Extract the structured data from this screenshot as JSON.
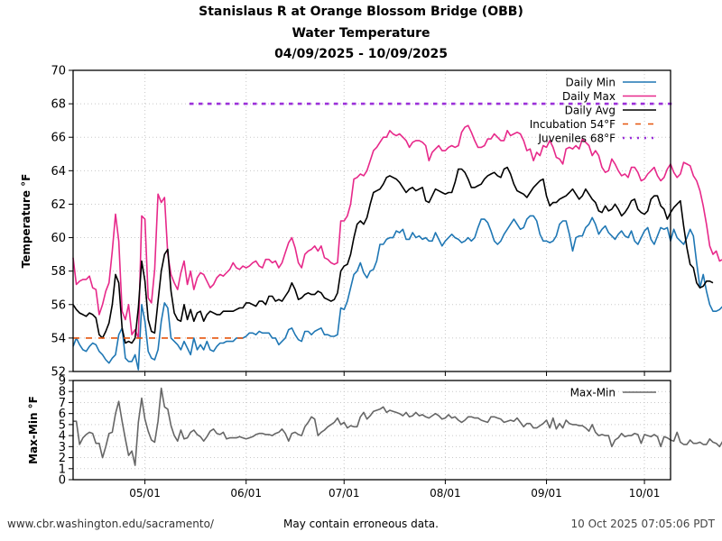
{
  "header": {
    "title_line1": "Stanislaus R at Orange Blossom Bridge (OBB)",
    "title_line2": "Water Temperature",
    "title_line3": "04/09/2025 - 10/09/2025"
  },
  "footer": {
    "url": "www.cbr.washington.edu/sacramento/",
    "disclaimer": "May contain erroneous data.",
    "timestamp": "10 Oct 2025 07:05:06 PDT"
  },
  "colors": {
    "daily_min": "#1f77b4",
    "daily_max": "#e7298a",
    "daily_avg": "#000000",
    "incubation": "#e6550d",
    "juveniles": "#9b30d9",
    "max_min": "#666666"
  },
  "chart_data": [
    {
      "type": "line",
      "title": "Water Temperature",
      "xlabel": "",
      "ylabel": "Temperature °F",
      "ylim": [
        52,
        70
      ],
      "yticks": [
        "52",
        "54",
        "56",
        "58",
        "60",
        "62",
        "64",
        "66",
        "68",
        "70"
      ],
      "xlim": [
        "04/09/2025",
        "10/09/2025"
      ],
      "xticks": [
        "05/01",
        "06/01",
        "07/01",
        "08/01",
        "09/01",
        "10/01"
      ],
      "xtick_day_index": [
        22,
        53,
        83,
        114,
        145,
        175
      ],
      "grid": true,
      "legend_position": "top-right",
      "x_start": "04/09/2025",
      "x_step": "1 day",
      "series": [
        {
          "name": "Daily Min",
          "style": "solid",
          "values": [
            53.5,
            54.0,
            53.6,
            53.3,
            53.2,
            53.5,
            53.7,
            53.6,
            53.2,
            53.0,
            52.7,
            52.5,
            52.8,
            53.0,
            54.2,
            54.6,
            52.8,
            52.6,
            52.6,
            53.0,
            52.1,
            56.0,
            55.0,
            53.2,
            52.8,
            52.7,
            53.3,
            55.0,
            56.1,
            55.8,
            54.0,
            53.8,
            53.6,
            53.3,
            53.8,
            53.4,
            53.0,
            54.0,
            53.3,
            53.6,
            53.3,
            53.8,
            53.3,
            53.2,
            53.5,
            53.7,
            53.7,
            53.8,
            53.8,
            53.8,
            54.0,
            54.0,
            54.0,
            54.1,
            54.3,
            54.3,
            54.2,
            54.4,
            54.3,
            54.3,
            54.3,
            54.0,
            54.0,
            53.6,
            53.8,
            54.0,
            54.5,
            54.6,
            54.2,
            53.9,
            53.8,
            54.4,
            54.4,
            54.2,
            54.4,
            54.5,
            54.6,
            54.2,
            54.2,
            54.1,
            54.1,
            54.2,
            55.8,
            55.7,
            56.2,
            57.0,
            57.8,
            58.0,
            58.5,
            57.9,
            57.6,
            58.0,
            58.1,
            58.6,
            59.6,
            59.6,
            59.9,
            60.0,
            60.0,
            60.4,
            60.3,
            60.5,
            59.9,
            59.9,
            60.3,
            60.0,
            60.1,
            59.9,
            60.0,
            59.8,
            59.8,
            60.3,
            59.9,
            59.5,
            59.8,
            60.0,
            60.2,
            60.0,
            59.9,
            59.7,
            59.8,
            60.0,
            59.8,
            60.0,
            60.6,
            61.1,
            61.1,
            60.9,
            60.4,
            59.8,
            59.6,
            59.8,
            60.2,
            60.5,
            60.8,
            61.1,
            60.8,
            60.5,
            60.6,
            61.1,
            61.3,
            61.3,
            61.0,
            60.2,
            59.8,
            59.8,
            59.7,
            59.8,
            60.1,
            60.8,
            61.0,
            61.0,
            60.2,
            59.2,
            60.0,
            60.1,
            60.1,
            60.6,
            60.8,
            61.2,
            60.8,
            60.2,
            60.5,
            60.7,
            60.3,
            60.1,
            59.9,
            60.2,
            60.4,
            60.1,
            60.0,
            60.4,
            59.8,
            59.6,
            60.0,
            60.4,
            60.6,
            59.9,
            59.6,
            60.1,
            60.6,
            60.5,
            60.6,
            59.8,
            60.5,
            60.0,
            59.8,
            59.6,
            60.0,
            60.5,
            60.1,
            58.5,
            57.0,
            57.8,
            56.8,
            56.0,
            55.6,
            55.6,
            55.7,
            55.9,
            56.0
          ]
        },
        {
          "name": "Daily Max",
          "style": "solid",
          "values": [
            58.8,
            57.2,
            57.4,
            57.5,
            57.5,
            57.7,
            57.0,
            56.9,
            55.4,
            56.0,
            56.8,
            57.3,
            59.2,
            61.4,
            59.8,
            55.6,
            55.1,
            56.0,
            54.2,
            54.5,
            54.0,
            61.3,
            61.1,
            56.4,
            56.1,
            58.1,
            62.6,
            62.1,
            62.4,
            59.0,
            57.8,
            57.3,
            56.9,
            57.9,
            58.6,
            57.2,
            58.0,
            56.9,
            57.6,
            57.9,
            57.8,
            57.4,
            57.0,
            57.2,
            57.6,
            57.8,
            57.7,
            57.9,
            58.1,
            58.5,
            58.2,
            58.1,
            58.3,
            58.2,
            58.3,
            58.5,
            58.6,
            58.3,
            58.2,
            58.7,
            58.7,
            58.5,
            58.6,
            58.2,
            58.5,
            59.1,
            59.7,
            60.0,
            59.4,
            58.5,
            58.2,
            59.0,
            59.2,
            59.3,
            59.5,
            59.2,
            59.5,
            58.8,
            58.7,
            58.5,
            58.4,
            58.5,
            61.0,
            61.0,
            61.3,
            62.0,
            63.5,
            63.6,
            63.8,
            63.7,
            64.0,
            64.6,
            65.2,
            65.4,
            65.7,
            66.0,
            66.0,
            66.4,
            66.2,
            66.1,
            66.2,
            66.0,
            65.8,
            65.4,
            65.7,
            65.8,
            65.8,
            65.7,
            65.5,
            64.6,
            65.1,
            65.3,
            65.5,
            65.2,
            65.2,
            65.4,
            65.5,
            65.4,
            65.5,
            66.3,
            66.6,
            66.7,
            66.3,
            65.8,
            65.4,
            65.4,
            65.5,
            65.9,
            65.9,
            66.2,
            66.0,
            65.8,
            65.8,
            66.4,
            66.1,
            66.2,
            66.3,
            66.2,
            65.8,
            65.2,
            65.3,
            64.6,
            65.1,
            64.9,
            65.5,
            65.4,
            65.8,
            65.4,
            64.8,
            64.7,
            64.4,
            65.3,
            65.4,
            65.3,
            65.5,
            65.3,
            65.9,
            65.7,
            65.5,
            64.9,
            65.2,
            64.9,
            64.2,
            63.9,
            64.0,
            64.7,
            64.4,
            64.0,
            63.7,
            63.8,
            63.6,
            64.2,
            64.2,
            63.9,
            63.4,
            63.5,
            63.8,
            64.0,
            64.2,
            63.7,
            63.4,
            63.6,
            64.1,
            64.4,
            63.9,
            63.6,
            63.8,
            64.5,
            64.4,
            64.3,
            63.7,
            63.4,
            62.8,
            61.9,
            60.8,
            59.5,
            59.0,
            59.2,
            58.6,
            58.7,
            58.8,
            59.4,
            59.2
          ]
        },
        {
          "name": "Daily Avg",
          "style": "solid",
          "values": [
            56.0,
            55.7,
            55.5,
            55.4,
            55.3,
            55.5,
            55.4,
            55.2,
            54.2,
            54.0,
            54.4,
            54.9,
            56.0,
            57.8,
            57.3,
            54.6,
            53.7,
            53.8,
            53.7,
            54.0,
            55.8,
            58.6,
            57.4,
            55.1,
            54.4,
            54.3,
            56.2,
            58.0,
            59.0,
            59.3,
            56.8,
            55.5,
            55.1,
            55.0,
            56.0,
            55.1,
            55.7,
            55.0,
            55.5,
            55.6,
            55.0,
            55.4,
            55.6,
            55.5,
            55.4,
            55.4,
            55.6,
            55.6,
            55.6,
            55.6,
            55.7,
            55.8,
            55.8,
            56.1,
            56.1,
            56.0,
            55.9,
            56.2,
            56.2,
            56.0,
            56.5,
            56.5,
            56.2,
            56.3,
            56.2,
            56.5,
            56.8,
            57.3,
            56.9,
            56.3,
            56.4,
            56.6,
            56.7,
            56.6,
            56.6,
            56.8,
            56.7,
            56.4,
            56.3,
            56.2,
            56.3,
            56.7,
            58.0,
            58.3,
            58.4,
            59.0,
            60.0,
            60.8,
            61.0,
            60.8,
            61.2,
            62.0,
            62.7,
            62.8,
            62.9,
            63.2,
            63.6,
            63.7,
            63.6,
            63.5,
            63.3,
            63.0,
            62.7,
            62.9,
            63.0,
            62.8,
            62.9,
            63.0,
            62.2,
            62.1,
            62.5,
            62.9,
            62.8,
            62.7,
            62.6,
            62.7,
            62.7,
            63.3,
            64.1,
            64.1,
            63.9,
            63.5,
            63.0,
            63.0,
            63.1,
            63.2,
            63.5,
            63.7,
            63.8,
            63.9,
            63.7,
            63.6,
            64.1,
            64.2,
            63.8,
            63.2,
            62.8,
            62.7,
            62.6,
            62.4,
            62.7,
            63.0,
            63.2,
            63.4,
            63.5,
            62.5,
            61.9,
            62.1,
            62.1,
            62.3,
            62.4,
            62.5,
            62.7,
            62.9,
            62.6,
            62.3,
            62.5,
            62.9,
            62.6,
            62.3,
            62.1,
            61.6,
            61.5,
            61.9,
            61.6,
            61.7,
            62.0,
            61.7,
            61.3,
            61.5,
            61.8,
            62.2,
            62.3,
            61.7,
            61.5,
            61.4,
            61.6,
            62.3,
            62.5,
            62.5,
            61.9,
            61.7,
            61.1,
            61.5,
            61.8,
            62.0,
            62.2,
            60.7,
            59.4,
            58.4,
            58.2,
            57.3,
            57.0,
            57.1,
            57.4,
            57.4,
            57.3
          ]
        },
        {
          "name": "Incubation 54°F",
          "style": "dashed",
          "constant": 54,
          "x_range": [
            "04/09/2025",
            "05/31/2025"
          ]
        },
        {
          "name": "Juveniles 68°F",
          "style": "dotted",
          "constant": 68,
          "x_range": [
            "05/15/2025",
            "10/09/2025"
          ]
        }
      ]
    },
    {
      "type": "line",
      "title": "",
      "xlabel": "",
      "ylabel": "Max-Min °F",
      "ylim": [
        0,
        9
      ],
      "yticks": [
        "0",
        "1",
        "2",
        "3",
        "4",
        "5",
        "6",
        "7",
        "8",
        "9"
      ],
      "xticks": [
        "05/01",
        "06/01",
        "07/01",
        "08/01",
        "09/01",
        "10/01"
      ],
      "xtick_day_index": [
        22,
        53,
        83,
        114,
        145,
        175
      ],
      "grid": true,
      "legend_position": "top-right",
      "x_start": "04/09/2025",
      "x_step": "1 day",
      "series": [
        {
          "name": "Max-Min",
          "style": "solid",
          "values": [
            5.3,
            5.3,
            3.2,
            3.8,
            4.1,
            4.3,
            4.2,
            3.3,
            3.3,
            2.0,
            3.0,
            4.2,
            4.3,
            6.0,
            7.1,
            5.3,
            3.7,
            2.2,
            2.6,
            1.3,
            5.2,
            7.4,
            5.5,
            4.4,
            3.6,
            3.4,
            5.3,
            8.3,
            6.6,
            6.4,
            4.9,
            4.0,
            3.5,
            4.5,
            3.7,
            3.8,
            4.3,
            4.5,
            4.1,
            3.9,
            3.5,
            3.9,
            4.4,
            4.6,
            4.2,
            4.1,
            4.3,
            3.7,
            3.8,
            3.8,
            3.8,
            3.9,
            3.8,
            3.7,
            3.8,
            3.9,
            4.1,
            4.2,
            4.2,
            4.1,
            4.1,
            4.0,
            4.2,
            4.3,
            4.6,
            4.2,
            3.5,
            4.2,
            4.3,
            4.1,
            4.0,
            4.8,
            5.2,
            5.7,
            5.5,
            4.0,
            4.3,
            4.5,
            4.8,
            5.0,
            5.2,
            5.6,
            5.0,
            5.2,
            4.7,
            4.9,
            4.8,
            4.8,
            5.7,
            6.1,
            5.5,
            5.8,
            6.2,
            6.3,
            6.4,
            6.6,
            6.1,
            6.3,
            6.2,
            6.1,
            6.0,
            5.8,
            6.1,
            5.7,
            5.8,
            6.1,
            5.8,
            5.9,
            5.7,
            5.6,
            5.8,
            6.0,
            5.8,
            5.5,
            5.6,
            5.9,
            5.6,
            5.7,
            5.4,
            5.2,
            5.4,
            5.7,
            5.7,
            5.6,
            5.6,
            5.4,
            5.3,
            5.2,
            5.7,
            5.7,
            5.6,
            5.5,
            5.2,
            5.3,
            5.4,
            5.3,
            5.6,
            5.2,
            4.8,
            5.1,
            5.1,
            4.7,
            4.7,
            4.9,
            5.1,
            5.4,
            4.7,
            5.6,
            4.6,
            5.1,
            4.7,
            5.4,
            5.1,
            5.0,
            5.0,
            4.9,
            4.9,
            4.7,
            4.4,
            5.0,
            4.3,
            4.0,
            4.1,
            4.0,
            4.0,
            3.0,
            3.6,
            3.8,
            4.2,
            3.9,
            4.0,
            4.0,
            4.2,
            4.1,
            3.3,
            4.1,
            4.0,
            3.9,
            4.1,
            3.9,
            3.0,
            3.9,
            3.8,
            3.6,
            3.5,
            4.3,
            3.4,
            3.2,
            3.2,
            3.6,
            3.3,
            3.3,
            3.4,
            3.2,
            3.2,
            3.7,
            3.4,
            3.3,
            3.0,
            3.5,
            2.7
          ]
        }
      ]
    }
  ]
}
